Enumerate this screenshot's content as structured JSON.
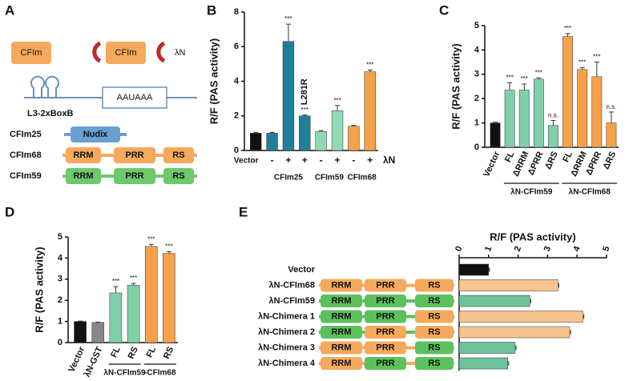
{
  "panel_labels": [
    "A",
    "B",
    "C",
    "D",
    "E"
  ],
  "diagram_a": {
    "proteins": [
      "CFIm",
      "CFIm"
    ],
    "tether": "λN",
    "reporter": "L3-2xBoxB",
    "signal": "AAUAAA",
    "domains": [
      {
        "name": "CFIm25",
        "parts": [
          "Nudix"
        ],
        "color": "#6a9fd4"
      },
      {
        "name": "CFIm68",
        "parts": [
          "RRM",
          "PRR",
          "RS"
        ],
        "color": "#f5a95c"
      },
      {
        "name": "CFIm59",
        "parts": [
          "RRM",
          "PRR",
          "RS"
        ],
        "color": "#6cc96c"
      }
    ]
  },
  "chart_data": [
    {
      "type": "bar",
      "y_label": "R/F (PAS activity)",
      "categories": [
        "Vector",
        "-",
        "+",
        "+",
        "-",
        "+",
        "-",
        "+"
      ],
      "values": [
        1.0,
        1.0,
        6.3,
        2.0,
        1.1,
        2.3,
        1.4,
        4.55
      ],
      "errors": [
        0.05,
        0.05,
        1.0,
        0.05,
        0.05,
        0.3,
        0.05,
        0.1
      ],
      "significance": [
        null,
        null,
        "***",
        "***",
        null,
        "***",
        null,
        "***"
      ],
      "colors": [
        "#111111",
        "#1f7f99",
        "#1f7f99",
        "#1f7f99",
        "#8fd9b4",
        "#8fd9b4",
        "#f5a24b",
        "#f5a24b"
      ],
      "group_labels": [
        "CFIm25",
        "CFIm59",
        "CFIm68"
      ],
      "row_label": "λN",
      "annotation": "L281R",
      "ylim": [
        0,
        8
      ],
      "yticks": [
        0,
        2,
        4,
        6,
        8
      ]
    },
    {
      "type": "bar",
      "y_label": "R/F (PAS activity)",
      "categories": [
        "Vector",
        "FL",
        "ΔRRM",
        "ΔPRR",
        "ΔRS",
        "FL",
        "ΔRRM",
        "ΔPRR",
        "ΔRS"
      ],
      "values": [
        1.0,
        2.35,
        2.35,
        2.8,
        0.9,
        4.55,
        3.2,
        2.9,
        1.0
      ],
      "errors": [
        0.03,
        0.3,
        0.25,
        0.05,
        0.2,
        0.12,
        0.08,
        0.6,
        0.45
      ],
      "significance": [
        null,
        "***",
        "***",
        "***",
        "n.s.",
        "***",
        "***",
        "***",
        "n.s."
      ],
      "colors": [
        "#111111",
        "#7fd0a8",
        "#7fd0a8",
        "#7fd0a8",
        "#7fd0a8",
        "#f5a04a",
        "#f5a04a",
        "#f5a04a",
        "#f5a04a"
      ],
      "group_labels": [
        "λN-CFIm59",
        "λN-CFIm68"
      ],
      "ylim": [
        0,
        5
      ],
      "yticks": [
        0,
        1,
        2,
        3,
        4,
        5
      ]
    },
    {
      "type": "bar",
      "y_label": "R/F (PAS activity)",
      "categories": [
        "Vector",
        "λN-GST",
        "FL",
        "RS",
        "FL",
        "RS"
      ],
      "values": [
        1.0,
        0.95,
        2.35,
        2.72,
        4.55,
        4.22
      ],
      "errors": [
        0.02,
        0.02,
        0.3,
        0.08,
        0.1,
        0.08
      ],
      "significance": [
        null,
        null,
        "***",
        "***",
        "***",
        "***"
      ],
      "colors": [
        "#111111",
        "#888888",
        "#7fd0a8",
        "#7fd0a8",
        "#f5a04a",
        "#f5a04a"
      ],
      "group_labels": [
        "λN-CFIm59",
        "-CFIm68"
      ],
      "ylim": [
        0,
        5
      ],
      "yticks": [
        0,
        1,
        2,
        3,
        4,
        5
      ]
    },
    {
      "type": "barh",
      "x_label": "R/F (PAS activity)",
      "categories": [
        "Vector",
        "λN-CFIm68",
        "λN-CFIm59",
        "λN-Chimera 1",
        "λN-Chimera 2",
        "λN-Chimera 3",
        "λN-Chimera 4"
      ],
      "values": [
        1.0,
        3.35,
        2.4,
        4.2,
        3.75,
        1.9,
        1.65
      ],
      "errors": [
        0.03,
        0.03,
        0.03,
        0.03,
        0.03,
        0.03,
        0.03
      ],
      "colors": [
        "#111111",
        "#f7c48e",
        "#6cc39a",
        "#f7c48e",
        "#f7c48e",
        "#6cc39a",
        "#6cc39a"
      ],
      "domains": [
        null,
        [
          "RRM",
          "PRR",
          "RS"
        ],
        [
          "RRM",
          "PRR",
          "RS"
        ],
        [
          "RRM",
          "PRR",
          "RS"
        ],
        [
          "RRM",
          "PRR",
          "RS"
        ],
        [
          "RRM",
          "PRR",
          "RS"
        ],
        [
          "RRM",
          "PRR",
          "RS"
        ]
      ],
      "domain_colors": [
        null,
        [
          "#f5a95c",
          "#f5a95c",
          "#f5a95c",
          "#f5a95c"
        ],
        [
          "#5cc05c",
          "#5cc05c",
          "#5cc05c",
          "#5cc05c"
        ],
        [
          "#5cc05c",
          "#5cc05c",
          "#f5a95c",
          "#5cc05c"
        ],
        [
          "#5cc05c",
          "#f5a95c",
          "#f5a95c",
          "#5cc05c"
        ],
        [
          "#f5a95c",
          "#f5a95c",
          "#5cc05c",
          "#f5a95c"
        ],
        [
          "#f5a95c",
          "#5cc05c",
          "#5cc05c",
          "#f5a95c"
        ]
      ],
      "xlim": [
        0,
        5
      ],
      "xticks": [
        0,
        1,
        2,
        3,
        4,
        5
      ]
    }
  ]
}
